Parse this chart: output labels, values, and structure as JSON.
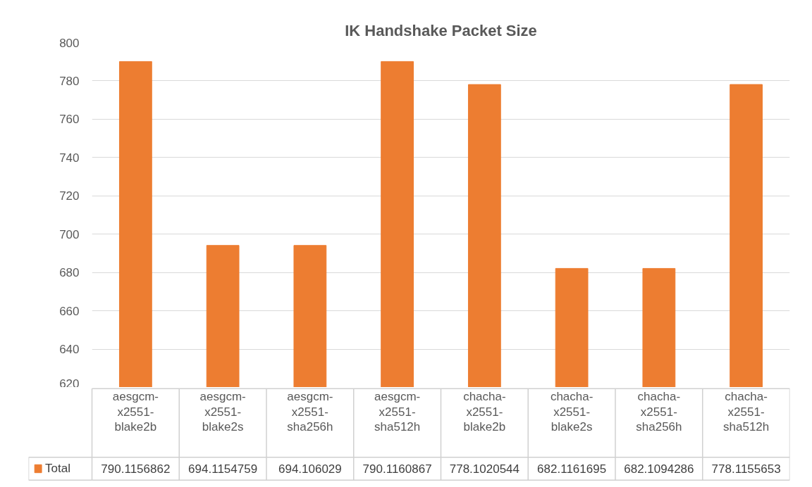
{
  "chart_data": {
    "type": "bar",
    "title": "IK Handshake Packet Size",
    "categories": [
      "aesgcm-x2551-blake2b",
      "aesgcm-x2551-blake2s",
      "aesgcm-x2551-sha256h",
      "aesgcm-x2551-sha512h",
      "chacha-x2551-blake2b",
      "chacha-x2551-blake2s",
      "chacha-x2551-sha256h",
      "chacha-x2551-sha512h"
    ],
    "series": [
      {
        "name": "Total",
        "color": "#ed7d31",
        "values": [
          790.1156862,
          694.1154759,
          694.106029,
          790.1160867,
          778.1020544,
          682.1161695,
          682.1094286,
          778.1155653
        ]
      }
    ],
    "ylim": [
      620,
      800
    ],
    "yticks": [
      620,
      640,
      660,
      680,
      700,
      720,
      740,
      760,
      780,
      800
    ],
    "grid": "y",
    "legend": "bottom",
    "data_labels": true
  }
}
